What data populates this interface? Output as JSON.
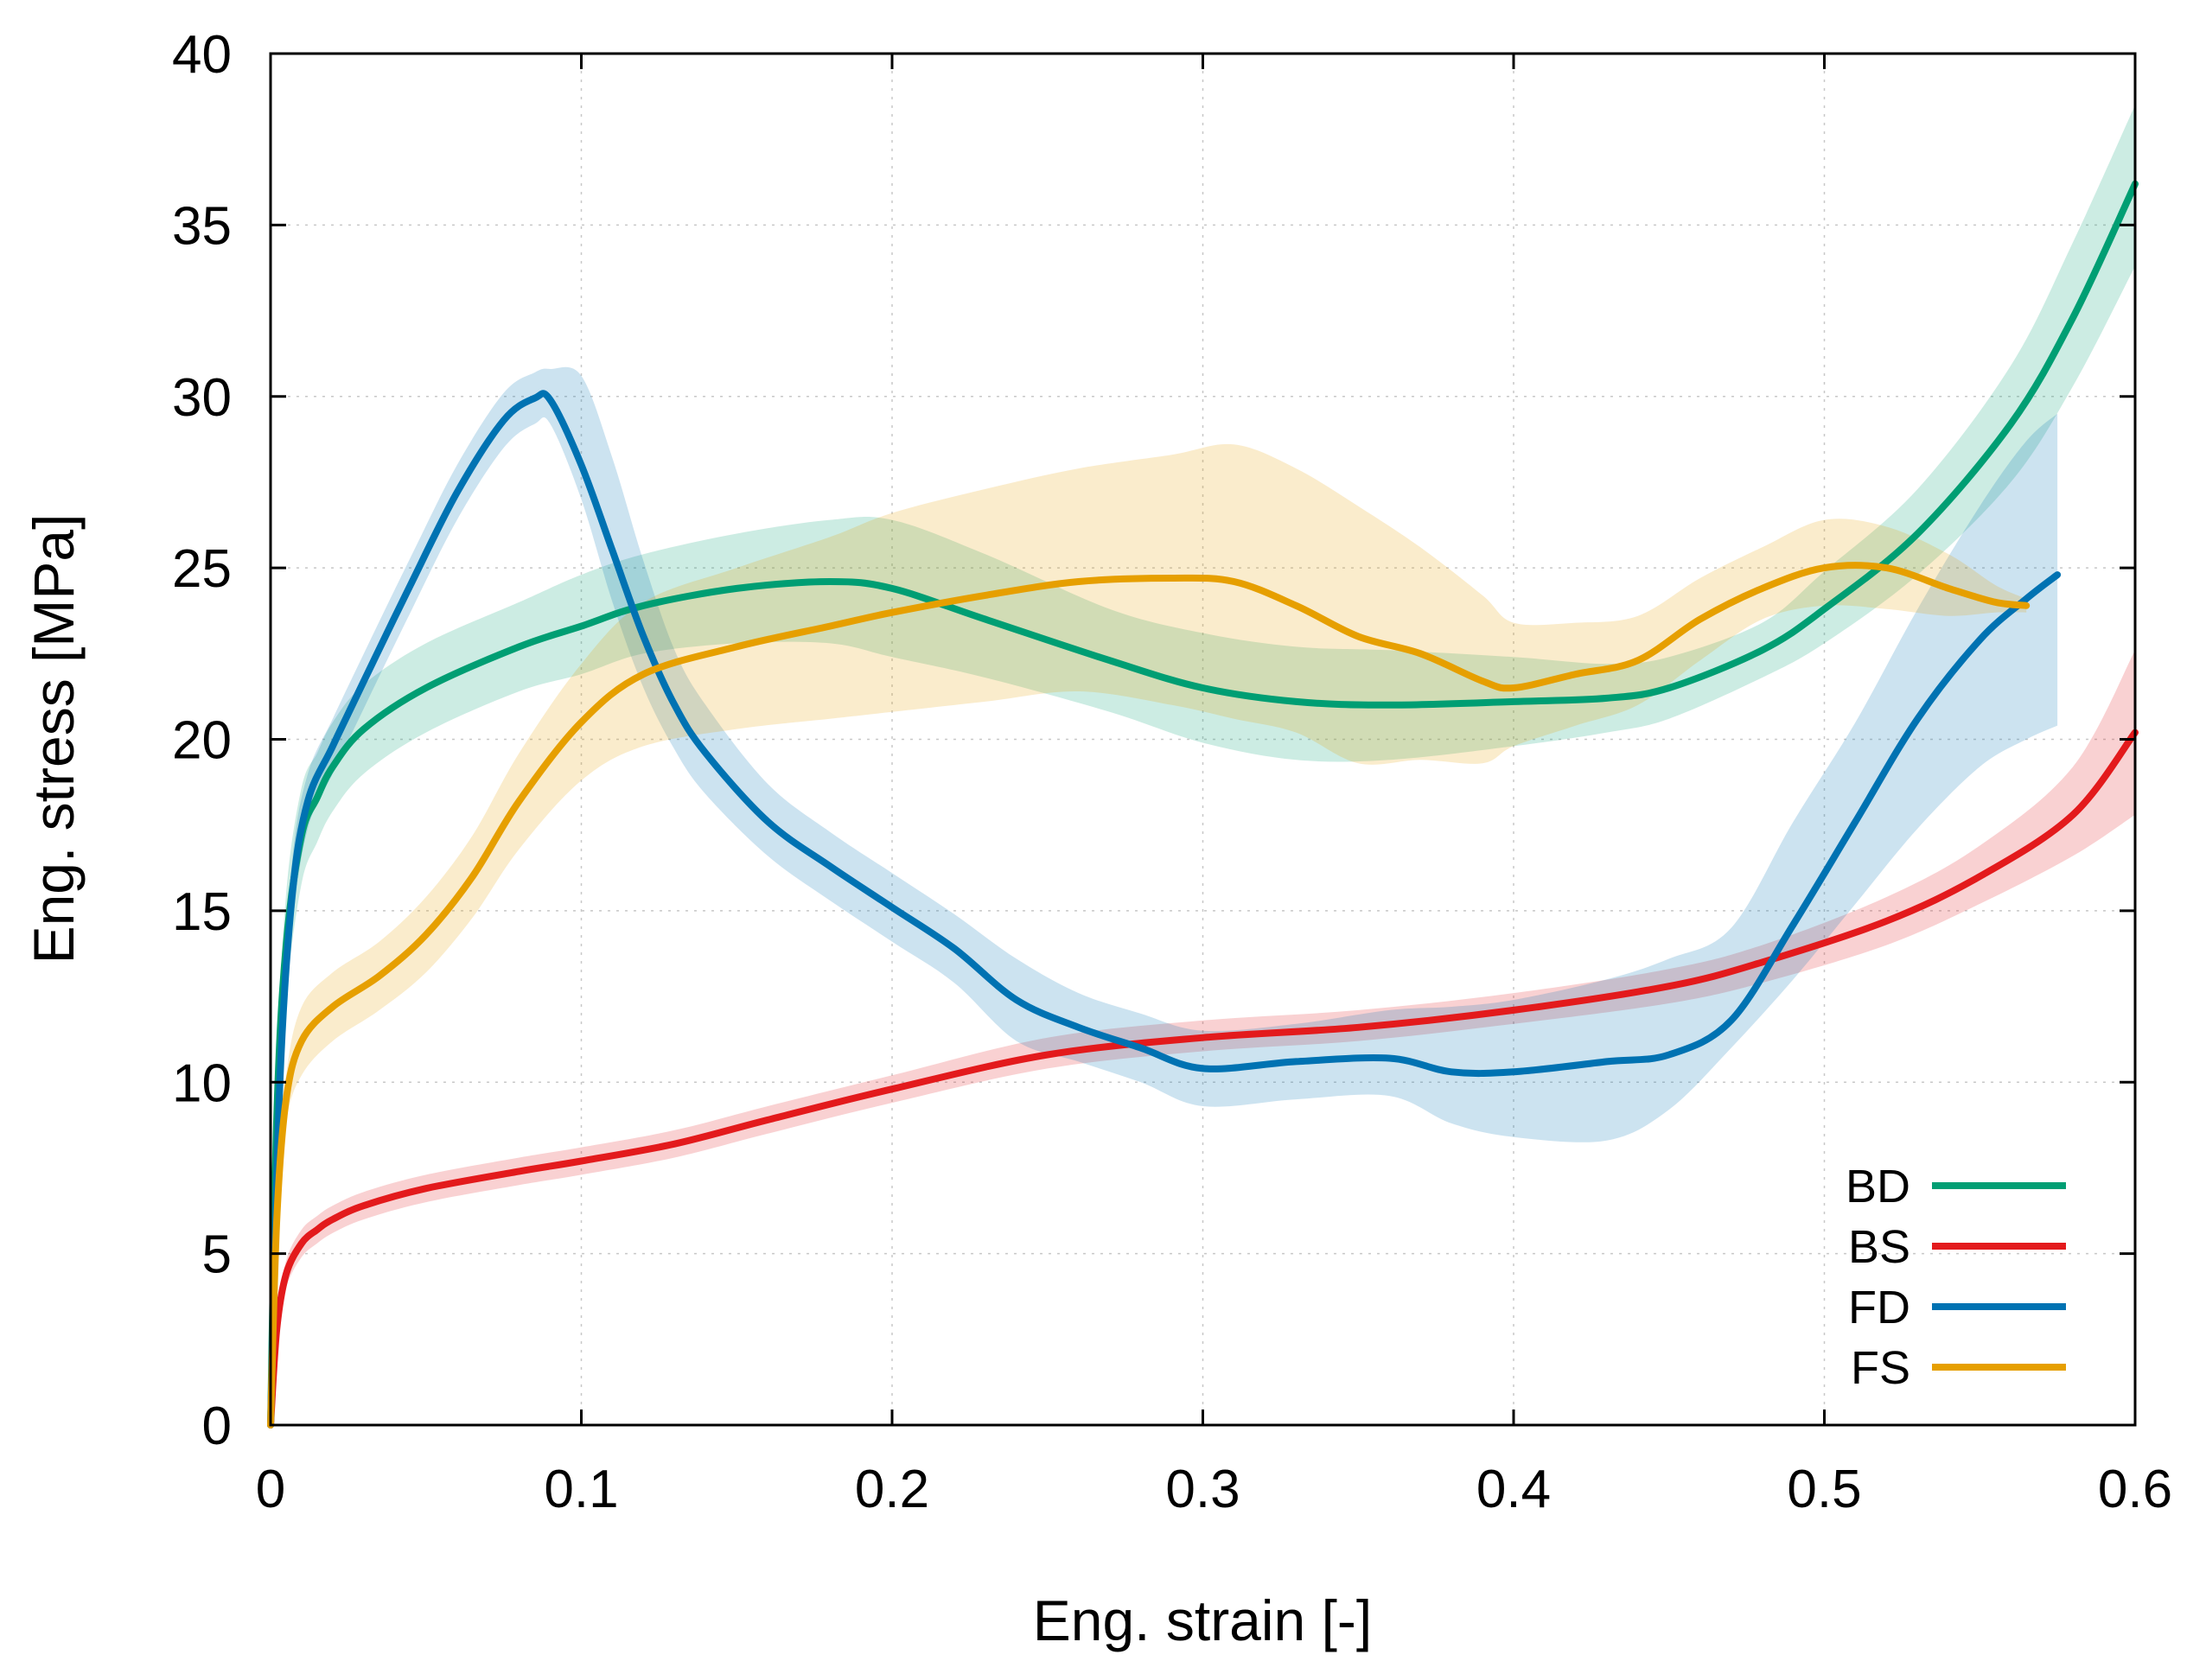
{
  "chart_data": {
    "type": "line",
    "title": "",
    "xlabel": "Eng. strain [-]",
    "ylabel": "Eng. stress [MPa]",
    "xlim": [
      0,
      0.6
    ],
    "ylim": [
      0,
      40
    ],
    "xticks": [
      0,
      0.1,
      0.2,
      0.3,
      0.4,
      0.5,
      0.6
    ],
    "xtick_labels": [
      "0",
      "0.1",
      "0.2",
      "0.3",
      "0.4",
      "0.5",
      "0.6"
    ],
    "yticks": [
      0,
      5,
      10,
      15,
      20,
      25,
      30,
      35,
      40
    ],
    "ytick_labels": [
      "0",
      "5",
      "10",
      "15",
      "20",
      "25",
      "30",
      "35",
      "40"
    ],
    "grid": true,
    "legend_position": "bottom-right",
    "series": [
      {
        "name": "BD",
        "color": "#009e73",
        "x": [
          0,
          0.002,
          0.005,
          0.01,
          0.015,
          0.02,
          0.03,
          0.05,
          0.08,
          0.1,
          0.12,
          0.15,
          0.18,
          0.2,
          0.23,
          0.27,
          0.3,
          0.33,
          0.36,
          0.4,
          0.43,
          0.45,
          0.48,
          0.5,
          0.53,
          0.56,
          0.58,
          0.6
        ],
        "y": [
          0,
          9,
          14,
          17.2,
          18.3,
          19.2,
          20.3,
          21.5,
          22.7,
          23.3,
          23.9,
          24.4,
          24.6,
          24.4,
          23.5,
          22.3,
          21.5,
          21.1,
          21.0,
          21.1,
          21.2,
          21.5,
          22.6,
          23.8,
          26.0,
          29.2,
          32.3,
          36.2
        ],
        "lower": [
          0,
          8,
          12.5,
          15.8,
          17.0,
          17.9,
          19.0,
          20.2,
          21.4,
          21.9,
          22.5,
          22.8,
          22.8,
          22.4,
          21.8,
          20.8,
          19.9,
          19.4,
          19.4,
          19.8,
          20.2,
          20.6,
          21.8,
          22.8,
          24.8,
          27.5,
          30.3,
          33.8
        ],
        "upper": [
          0,
          10,
          15.5,
          18.6,
          19.6,
          20.5,
          21.6,
          22.8,
          24.0,
          24.8,
          25.4,
          26.0,
          26.4,
          26.4,
          25.4,
          23.8,
          23.1,
          22.7,
          22.6,
          22.4,
          22.2,
          22.4,
          23.4,
          24.9,
          27.3,
          30.9,
          34.5,
          38.5
        ]
      },
      {
        "name": "BS",
        "color": "#e31a1c",
        "x": [
          0,
          0.002,
          0.005,
          0.01,
          0.015,
          0.02,
          0.03,
          0.05,
          0.08,
          0.1,
          0.13,
          0.16,
          0.2,
          0.25,
          0.3,
          0.35,
          0.4,
          0.45,
          0.48,
          0.52,
          0.55,
          0.58,
          0.6
        ],
        "y": [
          0,
          2.8,
          4.4,
          5.3,
          5.7,
          6.0,
          6.4,
          6.9,
          7.4,
          7.7,
          8.2,
          8.9,
          9.8,
          10.8,
          11.3,
          11.6,
          12.1,
          12.8,
          13.5,
          14.7,
          16.0,
          17.8,
          20.2
        ],
        "lower": [
          0,
          2.4,
          4.0,
          4.9,
          5.3,
          5.6,
          6.0,
          6.5,
          7.0,
          7.3,
          7.8,
          8.5,
          9.4,
          10.4,
          10.9,
          11.2,
          11.7,
          12.3,
          12.9,
          14.0,
          15.2,
          16.6,
          17.8
        ],
        "upper": [
          0,
          3.2,
          4.8,
          5.7,
          6.1,
          6.4,
          6.8,
          7.3,
          7.8,
          8.1,
          8.6,
          9.3,
          10.2,
          11.3,
          11.8,
          12.1,
          12.6,
          13.3,
          14.0,
          15.4,
          16.9,
          19.2,
          22.6
        ]
      },
      {
        "name": "FD",
        "color": "#0072b2",
        "x": [
          0,
          0.003,
          0.007,
          0.012,
          0.02,
          0.03,
          0.045,
          0.06,
          0.075,
          0.085,
          0.09,
          0.1,
          0.11,
          0.12,
          0.13,
          0.14,
          0.16,
          0.18,
          0.2,
          0.22,
          0.24,
          0.26,
          0.28,
          0.3,
          0.33,
          0.36,
          0.38,
          0.4,
          0.43,
          0.45,
          0.47,
          0.49,
          0.51,
          0.53,
          0.55,
          0.565,
          0.575
        ],
        "y": [
          0,
          10,
          15.5,
          18.2,
          19.8,
          21.7,
          24.5,
          27.2,
          29.3,
          29.95,
          29.9,
          28.0,
          25.5,
          23.0,
          21.0,
          19.6,
          17.6,
          16.3,
          15.1,
          13.9,
          12.4,
          11.6,
          11.0,
          10.4,
          10.6,
          10.7,
          10.3,
          10.3,
          10.6,
          10.8,
          11.8,
          14.6,
          17.6,
          20.6,
          22.9,
          24.1,
          24.8
        ],
        "lower": [
          0,
          9,
          14.5,
          17.4,
          19.0,
          20.9,
          23.7,
          26.4,
          28.5,
          29.2,
          29.2,
          27.0,
          24.0,
          21.5,
          19.7,
          18.4,
          16.6,
          15.3,
          14.1,
          12.9,
          11.2,
          10.6,
          10.0,
          9.3,
          9.5,
          9.6,
          8.8,
          8.4,
          8.3,
          9.2,
          11.0,
          13.0,
          15.2,
          17.4,
          19.2,
          20.0,
          20.4
        ],
        "upper": [
          0,
          11,
          16.5,
          19.0,
          20.6,
          22.5,
          25.3,
          28.0,
          30.1,
          30.7,
          30.8,
          30.6,
          28.2,
          25.2,
          22.6,
          21.0,
          18.7,
          17.3,
          16.1,
          14.9,
          13.6,
          12.6,
          12.0,
          11.5,
          11.7,
          12.1,
          12.2,
          12.4,
          13.0,
          13.6,
          14.5,
          17.6,
          20.5,
          23.8,
          26.8,
          28.7,
          29.5
        ]
      },
      {
        "name": "FS",
        "color": "#e69f00",
        "x": [
          0,
          0.002,
          0.005,
          0.01,
          0.02,
          0.035,
          0.05,
          0.065,
          0.08,
          0.1,
          0.12,
          0.15,
          0.18,
          0.2,
          0.23,
          0.26,
          0.29,
          0.31,
          0.33,
          0.35,
          0.37,
          0.39,
          0.4,
          0.42,
          0.44,
          0.46,
          0.48,
          0.5,
          0.52,
          0.54,
          0.555,
          0.565
        ],
        "y": [
          0,
          6,
          9.5,
          11.2,
          12.2,
          13.1,
          14.3,
          16.0,
          18.2,
          20.5,
          21.9,
          22.7,
          23.3,
          23.7,
          24.2,
          24.6,
          24.7,
          24.6,
          23.9,
          23.0,
          22.5,
          21.7,
          21.5,
          21.9,
          22.3,
          23.5,
          24.4,
          25.0,
          25.0,
          24.4,
          24.0,
          23.9
        ],
        "lower": [
          0,
          5.5,
          8.8,
          10.2,
          11.2,
          12.1,
          13.2,
          14.8,
          16.8,
          18.8,
          19.8,
          20.3,
          20.6,
          20.8,
          21.1,
          21.4,
          21.0,
          20.6,
          20.2,
          19.3,
          19.4,
          19.3,
          19.8,
          20.4,
          21.0,
          22.3,
          23.5,
          23.9,
          23.8,
          23.6,
          23.7,
          23.7
        ],
        "upper": [
          0,
          6.5,
          10.2,
          12.2,
          13.2,
          14.1,
          15.4,
          17.2,
          19.6,
          22.2,
          24.0,
          25.0,
          25.9,
          26.6,
          27.3,
          27.9,
          28.3,
          28.6,
          27.9,
          26.8,
          25.6,
          24.2,
          23.4,
          23.4,
          23.6,
          24.7,
          25.6,
          26.4,
          26.2,
          25.4,
          24.5,
          24.1
        ]
      }
    ]
  }
}
